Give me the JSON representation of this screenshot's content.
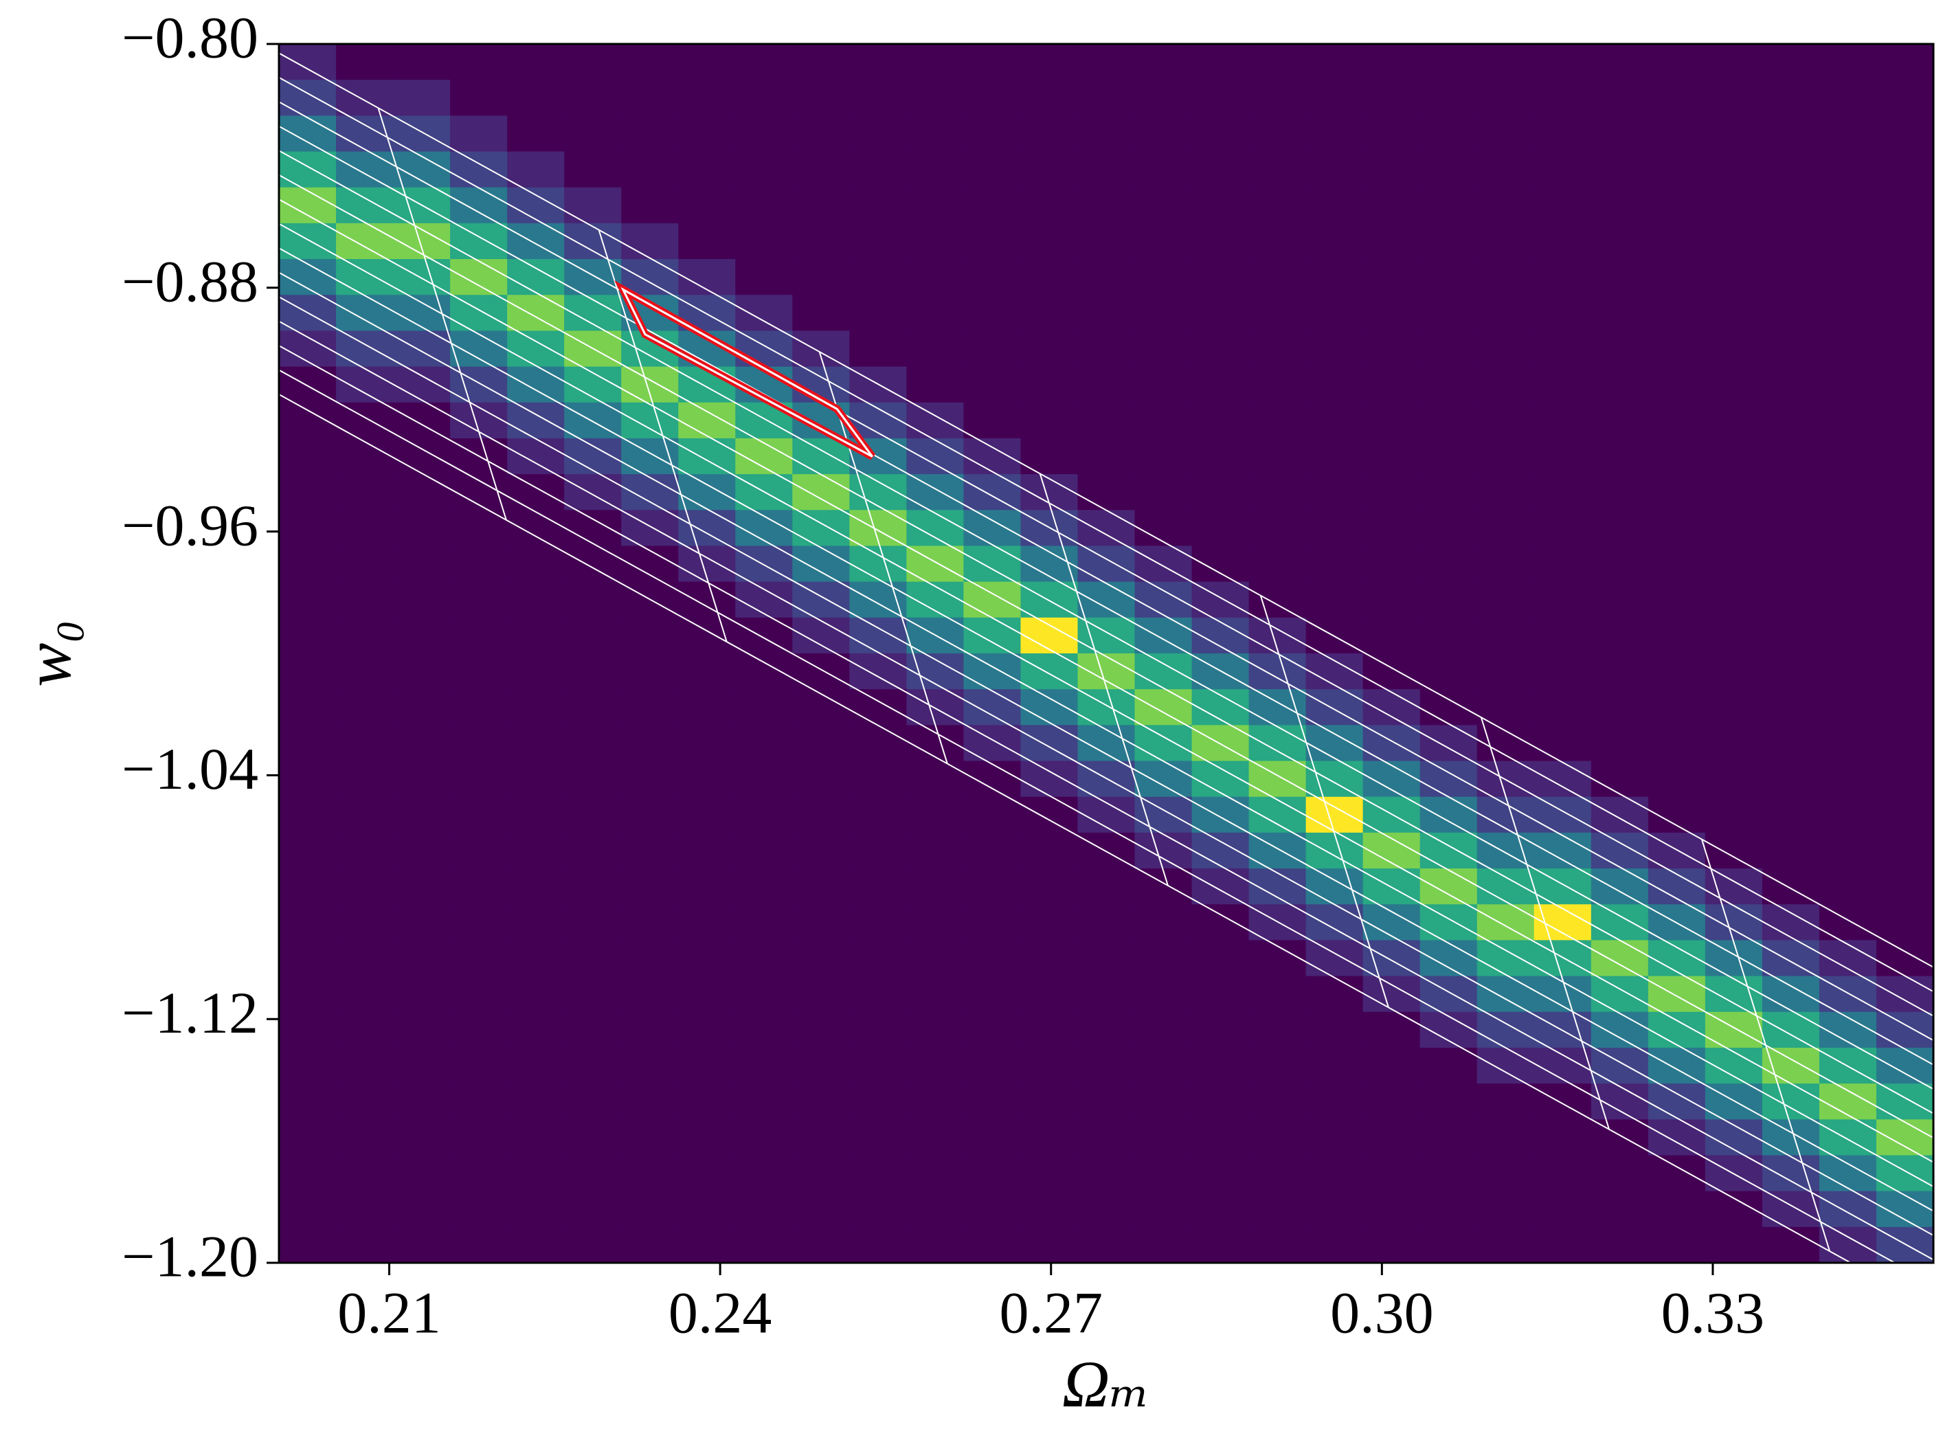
{
  "chart_data": {
    "type": "heatmap",
    "xlabel": "Ωₘ",
    "ylabel": "w₀",
    "xlim": [
      0.2,
      0.35
    ],
    "ylim": [
      -1.2,
      -0.8
    ],
    "xticks": [
      0.21,
      0.24,
      0.27,
      {
        "value": 0.3,
        "label": "0.30"
      },
      0.33
    ],
    "yticks": [
      {
        "value": -0.8,
        "label": "−0.80"
      },
      {
        "value": -0.88,
        "label": "−0.88"
      },
      {
        "value": -0.96,
        "label": "−0.96"
      },
      {
        "value": -1.04,
        "label": "−1.04"
      },
      {
        "value": -1.12,
        "label": "−1.12"
      },
      {
        "value": -1.2,
        "label": "−1.20"
      }
    ],
    "colormap": "viridis",
    "z": [
      [
        1,
        0,
        0,
        0,
        0,
        0,
        0,
        0,
        0,
        0,
        0,
        0,
        0,
        0,
        0,
        0,
        0,
        0,
        0,
        0,
        0,
        0,
        0,
        0,
        0,
        0,
        0,
        0,
        0
      ],
      [
        2,
        1,
        1,
        0,
        0,
        0,
        0,
        0,
        0,
        0,
        0,
        0,
        0,
        0,
        0,
        0,
        0,
        0,
        0,
        0,
        0,
        0,
        0,
        0,
        0,
        0,
        0,
        0,
        0
      ],
      [
        4,
        2,
        2,
        1,
        0,
        0,
        0,
        0,
        0,
        0,
        0,
        0,
        0,
        0,
        0,
        0,
        0,
        0,
        0,
        0,
        0,
        0,
        0,
        0,
        0,
        0,
        0,
        0,
        0
      ],
      [
        6,
        4,
        4,
        2,
        1,
        0,
        0,
        0,
        0,
        0,
        0,
        0,
        0,
        0,
        0,
        0,
        0,
        0,
        0,
        0,
        0,
        0,
        0,
        0,
        0,
        0,
        0,
        0,
        0
      ],
      [
        8,
        6,
        6,
        4,
        2,
        1,
        0,
        0,
        0,
        0,
        0,
        0,
        0,
        0,
        0,
        0,
        0,
        0,
        0,
        0,
        0,
        0,
        0,
        0,
        0,
        0,
        0,
        0,
        0
      ],
      [
        6,
        8,
        8,
        6,
        4,
        2,
        1,
        0,
        0,
        0,
        0,
        0,
        0,
        0,
        0,
        0,
        0,
        0,
        0,
        0,
        0,
        0,
        0,
        0,
        0,
        0,
        0,
        0,
        0
      ],
      [
        4,
        6,
        6,
        8,
        6,
        4,
        2,
        1,
        0,
        0,
        0,
        0,
        0,
        0,
        0,
        0,
        0,
        0,
        0,
        0,
        0,
        0,
        0,
        0,
        0,
        0,
        0,
        0,
        0
      ],
      [
        2,
        4,
        4,
        6,
        8,
        6,
        4,
        2,
        1,
        0,
        0,
        0,
        0,
        0,
        0,
        0,
        0,
        0,
        0,
        0,
        0,
        0,
        0,
        0,
        0,
        0,
        0,
        0,
        0
      ],
      [
        1,
        2,
        2,
        4,
        6,
        8,
        6,
        4,
        2,
        1,
        0,
        0,
        0,
        0,
        0,
        0,
        0,
        0,
        0,
        0,
        0,
        0,
        0,
        0,
        0,
        0,
        0,
        0,
        0
      ],
      [
        0,
        1,
        1,
        2,
        4,
        6,
        8,
        6,
        4,
        2,
        1,
        0,
        0,
        0,
        0,
        0,
        0,
        0,
        0,
        0,
        0,
        0,
        0,
        0,
        0,
        0,
        0,
        0,
        0
      ],
      [
        0,
        0,
        0,
        1,
        2,
        4,
        6,
        8,
        6,
        4,
        2,
        1,
        0,
        0,
        0,
        0,
        0,
        0,
        0,
        0,
        0,
        0,
        0,
        0,
        0,
        0,
        0,
        0,
        0
      ],
      [
        0,
        0,
        0,
        0,
        1,
        2,
        4,
        6,
        8,
        6,
        4,
        2,
        1,
        0,
        0,
        0,
        0,
        0,
        0,
        0,
        0,
        0,
        0,
        0,
        0,
        0,
        0,
        0,
        0
      ],
      [
        0,
        0,
        0,
        0,
        0,
        1,
        2,
        4,
        6,
        8,
        6,
        4,
        2,
        1,
        0,
        0,
        0,
        0,
        0,
        0,
        0,
        0,
        0,
        0,
        0,
        0,
        0,
        0,
        0
      ],
      [
        0,
        0,
        0,
        0,
        0,
        0,
        1,
        2,
        4,
        6,
        8,
        6,
        4,
        2,
        1,
        0,
        0,
        0,
        0,
        0,
        0,
        0,
        0,
        0,
        0,
        0,
        0,
        0,
        0
      ],
      [
        0,
        0,
        0,
        0,
        0,
        0,
        0,
        1,
        2,
        4,
        6,
        8,
        6,
        4,
        2,
        1,
        0,
        0,
        0,
        0,
        0,
        0,
        0,
        0,
        0,
        0,
        0,
        0,
        0
      ],
      [
        0,
        0,
        0,
        0,
        0,
        0,
        0,
        0,
        1,
        2,
        4,
        6,
        8,
        6,
        4,
        2,
        1,
        0,
        0,
        0,
        0,
        0,
        0,
        0,
        0,
        0,
        0,
        0,
        0
      ],
      [
        0,
        0,
        0,
        0,
        0,
        0,
        0,
        0,
        0,
        1,
        2,
        4,
        6,
        10,
        6,
        4,
        2,
        1,
        0,
        0,
        0,
        0,
        0,
        0,
        0,
        0,
        0,
        0,
        0
      ],
      [
        0,
        0,
        0,
        0,
        0,
        0,
        0,
        0,
        0,
        0,
        1,
        2,
        4,
        6,
        8,
        6,
        4,
        2,
        1,
        0,
        0,
        0,
        0,
        0,
        0,
        0,
        0,
        0,
        0
      ],
      [
        0,
        0,
        0,
        0,
        0,
        0,
        0,
        0,
        0,
        0,
        0,
        1,
        2,
        4,
        6,
        8,
        6,
        4,
        2,
        1,
        0,
        0,
        0,
        0,
        0,
        0,
        0,
        0,
        0
      ],
      [
        0,
        0,
        0,
        0,
        0,
        0,
        0,
        0,
        0,
        0,
        0,
        0,
        1,
        2,
        4,
        6,
        8,
        6,
        4,
        2,
        1,
        0,
        0,
        0,
        0,
        0,
        0,
        0,
        0
      ],
      [
        0,
        0,
        0,
        0,
        0,
        0,
        0,
        0,
        0,
        0,
        0,
        0,
        0,
        1,
        2,
        4,
        6,
        8,
        6,
        4,
        2,
        1,
        1,
        0,
        0,
        0,
        0,
        0,
        0
      ],
      [
        0,
        0,
        0,
        0,
        0,
        0,
        0,
        0,
        0,
        0,
        0,
        0,
        0,
        0,
        1,
        2,
        4,
        6,
        10,
        6,
        4,
        2,
        2,
        1,
        0,
        0,
        0,
        0,
        0
      ],
      [
        0,
        0,
        0,
        0,
        0,
        0,
        0,
        0,
        0,
        0,
        0,
        0,
        0,
        0,
        0,
        1,
        2,
        4,
        6,
        8,
        6,
        4,
        4,
        2,
        1,
        0,
        0,
        0,
        0
      ],
      [
        0,
        0,
        0,
        0,
        0,
        0,
        0,
        0,
        0,
        0,
        0,
        0,
        0,
        0,
        0,
        0,
        1,
        2,
        4,
        6,
        8,
        6,
        6,
        4,
        2,
        1,
        0,
        0,
        0
      ],
      [
        0,
        0,
        0,
        0,
        0,
        0,
        0,
        0,
        0,
        0,
        0,
        0,
        0,
        0,
        0,
        0,
        0,
        1,
        2,
        4,
        6,
        8,
        10,
        6,
        4,
        2,
        1,
        0,
        0
      ],
      [
        0,
        0,
        0,
        0,
        0,
        0,
        0,
        0,
        0,
        0,
        0,
        0,
        0,
        0,
        0,
        0,
        0,
        0,
        1,
        2,
        4,
        6,
        6,
        8,
        6,
        4,
        2,
        1,
        0
      ],
      [
        0,
        0,
        0,
        0,
        0,
        0,
        0,
        0,
        0,
        0,
        0,
        0,
        0,
        0,
        0,
        0,
        0,
        0,
        0,
        1,
        2,
        4,
        4,
        6,
        8,
        6,
        4,
        2,
        1
      ],
      [
        0,
        0,
        0,
        0,
        0,
        0,
        0,
        0,
        0,
        0,
        0,
        0,
        0,
        0,
        0,
        0,
        0,
        0,
        0,
        0,
        1,
        2,
        2,
        4,
        6,
        8,
        6,
        4,
        2
      ],
      [
        0,
        0,
        0,
        0,
        0,
        0,
        0,
        0,
        0,
        0,
        0,
        0,
        0,
        0,
        0,
        0,
        0,
        0,
        0,
        0,
        0,
        1,
        1,
        2,
        4,
        6,
        8,
        6,
        4
      ],
      [
        0,
        0,
        0,
        0,
        0,
        0,
        0,
        0,
        0,
        0,
        0,
        0,
        0,
        0,
        0,
        0,
        0,
        0,
        0,
        0,
        0,
        0,
        0,
        1,
        2,
        4,
        6,
        8,
        6
      ],
      [
        0,
        0,
        0,
        0,
        0,
        0,
        0,
        0,
        0,
        0,
        0,
        0,
        0,
        0,
        0,
        0,
        0,
        0,
        0,
        0,
        0,
        0,
        0,
        0,
        1,
        2,
        4,
        6,
        8
      ],
      [
        0,
        0,
        0,
        0,
        0,
        0,
        0,
        0,
        0,
        0,
        0,
        0,
        0,
        0,
        0,
        0,
        0,
        0,
        0,
        0,
        0,
        0,
        0,
        0,
        0,
        1,
        2,
        4,
        6
      ],
      [
        0,
        0,
        0,
        0,
        0,
        0,
        0,
        0,
        0,
        0,
        0,
        0,
        0,
        0,
        0,
        0,
        0,
        0,
        0,
        0,
        0,
        0,
        0,
        0,
        0,
        0,
        1,
        2,
        4
      ],
      [
        0,
        0,
        0,
        0,
        0,
        0,
        0,
        0,
        0,
        0,
        0,
        0,
        0,
        0,
        0,
        0,
        0,
        0,
        0,
        0,
        0,
        0,
        0,
        0,
        0,
        0,
        0,
        1,
        2
      ]
    ],
    "overlay_lines": {
      "color": "#ffffff",
      "segments": [
        [
          0.2,
          -0.803,
          0.35,
          -1.103
        ],
        [
          0.2,
          -0.811,
          0.35,
          -1.111
        ],
        [
          0.2,
          -0.819,
          0.35,
          -1.119
        ],
        [
          0.2,
          -0.827,
          0.35,
          -1.127
        ],
        [
          0.2,
          -0.835,
          0.35,
          -1.135
        ],
        [
          0.2,
          -0.843,
          0.35,
          -1.143
        ],
        [
          0.2,
          -0.851,
          0.35,
          -1.151
        ],
        [
          0.2,
          -0.859,
          0.35,
          -1.159
        ],
        [
          0.2,
          -0.867,
          0.35,
          -1.167
        ],
        [
          0.2,
          -0.875,
          0.35,
          -1.175
        ],
        [
          0.2,
          -0.883,
          0.35,
          -1.183
        ],
        [
          0.2,
          -0.891,
          0.35,
          -1.191
        ],
        [
          0.2,
          -0.899,
          0.35,
          -1.199
        ],
        [
          0.2,
          -0.907,
          0.35,
          -1.207
        ],
        [
          0.2,
          -0.915,
          0.35,
          -1.215
        ],
        [
          0.209,
          -0.821,
          0.2206,
          -0.9561
        ],
        [
          0.229,
          -0.861,
          0.2406,
          -0.9962
        ],
        [
          0.249,
          -0.901,
          0.2606,
          -1.0362
        ],
        [
          0.269,
          -0.941,
          0.2806,
          -1.0762
        ],
        [
          0.289,
          -0.981,
          0.3006,
          -1.1162
        ],
        [
          0.309,
          -1.021,
          0.3206,
          -1.1562
        ],
        [
          0.329,
          -1.061,
          0.3406,
          -1.1962
        ]
      ]
    },
    "highlight": {
      "color": "#e8111a",
      "x": [
        0.2312,
        0.2506,
        0.2538,
        0.2332
      ],
      "y": [
        -0.8806,
        -0.9198,
        -0.9354,
        -0.8953
      ]
    }
  }
}
